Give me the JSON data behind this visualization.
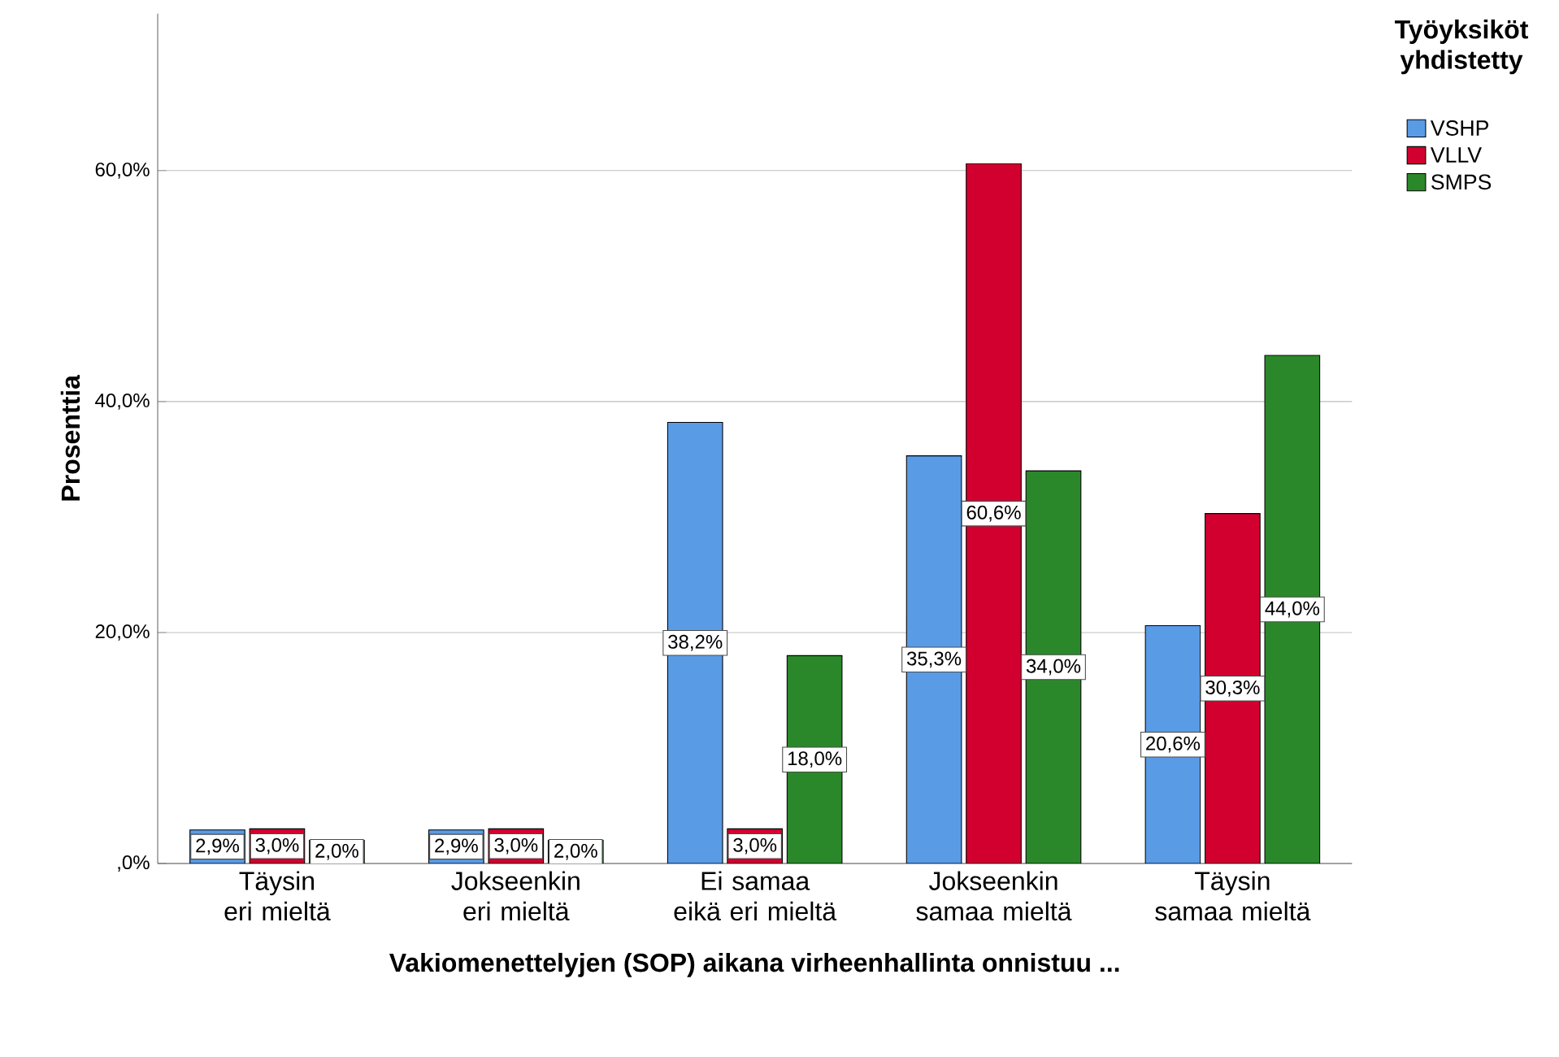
{
  "chart_data": {
    "type": "bar",
    "xlabel": "Vakiomenettelyjen (SOP) aikana virheenhallinta onnistuu ...",
    "ylabel": "Prosenttia",
    "legend_title": "Työyksiköt yhdistetty",
    "categories": [
      "Täysin eri mieltä",
      "Jokseenkin eri mieltä",
      "Ei samaa eikä eri mieltä",
      "Jokseenkin samaa mieltä",
      "Täysin samaa mieltä"
    ],
    "series": [
      {
        "name": "VSHP",
        "color": "#5a9be6",
        "values": [
          2.9,
          2.9,
          38.2,
          35.3,
          20.6
        ],
        "value_labels": [
          "2,9%",
          "2,9%",
          "38,2%",
          "35,3%",
          "20,6%"
        ]
      },
      {
        "name": "VLLV",
        "color": "#d2002f",
        "values": [
          3.0,
          3.0,
          3.0,
          60.6,
          30.3
        ],
        "value_labels": [
          "3,0%",
          "3,0%",
          "3,0%",
          "60,6%",
          "30,3%"
        ]
      },
      {
        "name": "SMPS",
        "color": "#2a882a",
        "values": [
          2.0,
          2.0,
          18.0,
          34.0,
          44.0
        ],
        "value_labels": [
          "2,0%",
          "2,0%",
          "18,0%",
          "34,0%",
          "44,0%"
        ]
      }
    ],
    "ylim": [
      0,
      73.6
    ],
    "yticks": [
      {
        "value": 0,
        "label": ",0%"
      },
      {
        "value": 20,
        "label": "20,0%"
      },
      {
        "value": 40,
        "label": "40,0%"
      },
      {
        "value": 60,
        "label": "60,0%"
      }
    ],
    "grid": "y",
    "legend": "top right"
  }
}
